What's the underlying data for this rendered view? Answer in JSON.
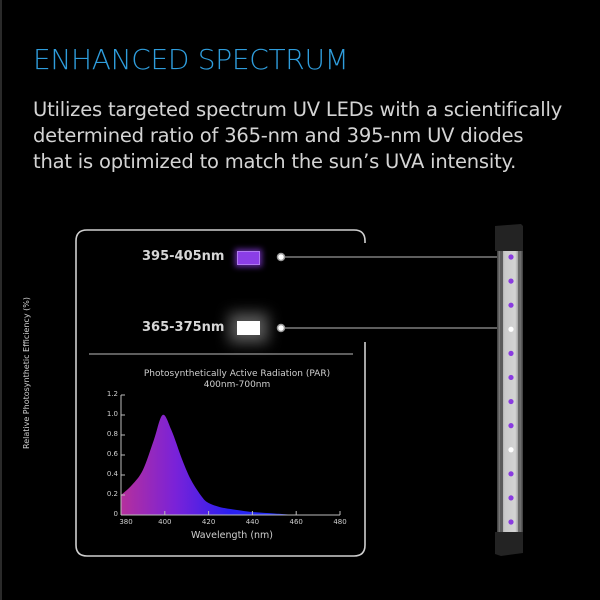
{
  "header": {
    "title": "ENHANCED SPECTRUM",
    "body_lines": [
      "Utilizes targeted spectrum UV LEDs with a scientifically",
      "determined ratio of 365-nm and 395-nm UV diodes",
      "that is optimized to match the sun’s UVA intensity."
    ]
  },
  "callouts": [
    {
      "label": "395-405nm",
      "swatch_color": "#8b3ee6",
      "type": "uv395"
    },
    {
      "label": "365-375nm",
      "swatch_color": "#ffffff",
      "type": "uv365"
    }
  ],
  "colors": {
    "background": "#000000",
    "title": "#2f9ddc",
    "body_text": "#d4d4d4",
    "frame": "#cfcfcf",
    "curve_left": "#b5309c",
    "curve_mid": "#7a22d8",
    "curve_right": "#1f2bff"
  },
  "led_bar": {
    "led_sequence": [
      "uv",
      "uv",
      "uv",
      "white",
      "uv",
      "uv",
      "uv",
      "uv",
      "white",
      "uv",
      "uv",
      "uv"
    ]
  },
  "chart_data": {
    "type": "area",
    "title": "Photosynthetically Active Radiation (PAR)",
    "subtitle": "400nm-700nm",
    "xlabel": "Wavelength (nm)",
    "ylabel": "Relative Photosynthetic Efficiency (%)",
    "x_ticks": [
      "380",
      "400",
      "420",
      "440",
      "460",
      "480"
    ],
    "y_ticks": [
      "0",
      "0.2",
      "0.4",
      "0.6",
      "0.8",
      "1.0",
      "1.2"
    ],
    "xlim": [
      380,
      480
    ],
    "ylim": [
      0,
      1.2
    ],
    "grid": false,
    "legend": null,
    "x": [
      380,
      385,
      390,
      395,
      399,
      403,
      408,
      412,
      417,
      420,
      425,
      430,
      440,
      450,
      460
    ],
    "values": [
      0.2,
      0.3,
      0.45,
      0.75,
      1.0,
      0.85,
      0.55,
      0.35,
      0.18,
      0.12,
      0.08,
      0.06,
      0.03,
      0.015,
      0.0
    ],
    "fill": "horizontal gradient magenta → purple → blue"
  }
}
